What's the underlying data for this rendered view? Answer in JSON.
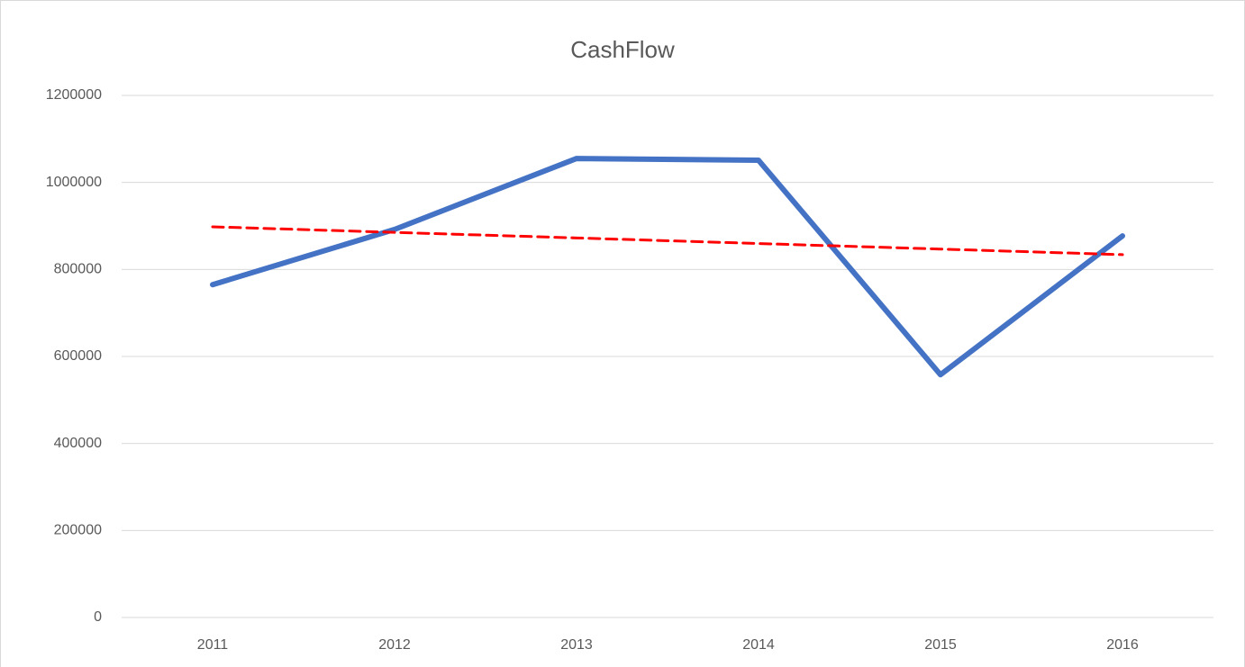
{
  "chart_data": {
    "type": "line",
    "title": "CashFlow",
    "categories": [
      "2011",
      "2012",
      "2013",
      "2014",
      "2015",
      "2016"
    ],
    "series": [
      {
        "color": "#4472c4",
        "style": "solid",
        "values": [
          765000,
          892000,
          1055000,
          1051000,
          558000,
          877000
        ]
      },
      {
        "color": "#ff0000",
        "style": "dashed",
        "values": [
          898000,
          885200,
          872400,
          859600,
          846800,
          834000
        ]
      }
    ],
    "ylim": [
      0,
      1200000
    ],
    "yticks": [
      0,
      200000,
      400000,
      600000,
      800000,
      1000000,
      1200000
    ],
    "grid": true
  }
}
